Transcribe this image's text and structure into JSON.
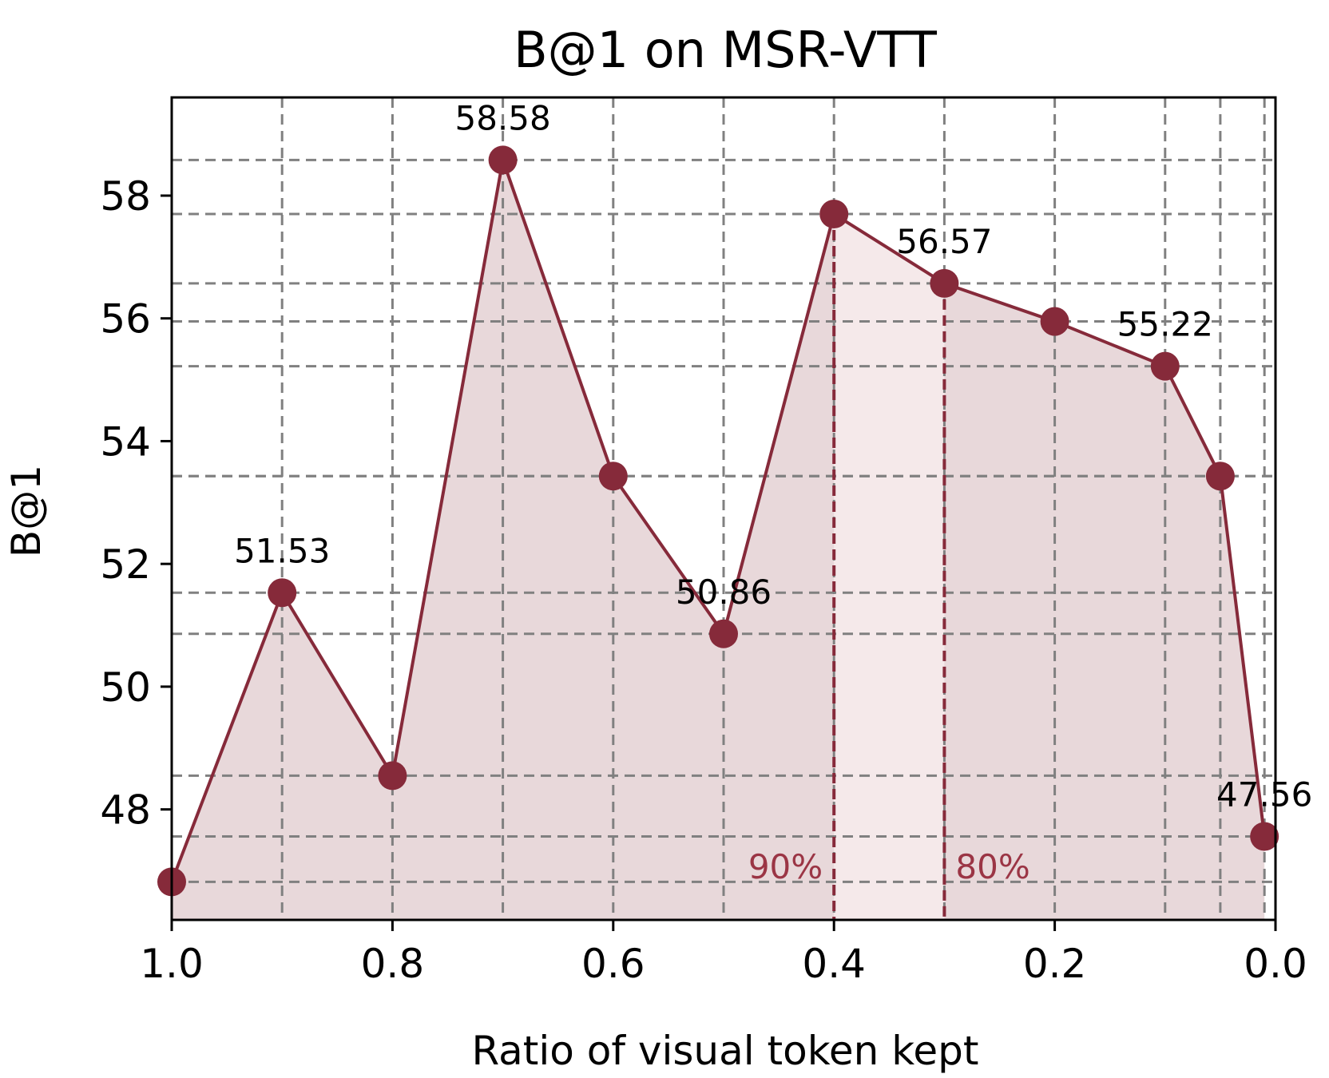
{
  "chart_data": {
    "type": "line",
    "title": "B@1 on MSR-VTT",
    "xlabel": "Ratio of visual token kept",
    "ylabel": "B@1",
    "xlim": [
      1.0,
      0.0
    ],
    "ylim": [
      46.2,
      59.6
    ],
    "x_reversed": true,
    "xticks": [
      1.0,
      0.8,
      0.6,
      0.4,
      0.2,
      0.0
    ],
    "xtick_labels": [
      "1.0",
      "0.8",
      "0.6",
      "0.4",
      "0.2",
      "0.0"
    ],
    "yticks": [
      48,
      50,
      52,
      54,
      56,
      58
    ],
    "ytick_labels": [
      "48",
      "50",
      "52",
      "54",
      "56",
      "58"
    ],
    "grid": true,
    "series": [
      {
        "x": [
          1.0,
          0.9,
          0.8,
          0.7,
          0.6,
          0.5,
          0.4,
          0.3,
          0.2,
          0.1,
          0.05,
          0.01
        ],
        "y": [
          46.82,
          51.53,
          48.55,
          58.58,
          53.43,
          50.86,
          57.7,
          56.57,
          55.95,
          55.22,
          53.43,
          47.56
        ],
        "color": "#862a3a"
      }
    ],
    "data_labels": [
      {
        "x": 0.9,
        "y": 51.53,
        "text": "51.53"
      },
      {
        "x": 0.7,
        "y": 58.58,
        "text": "58.58"
      },
      {
        "x": 0.5,
        "y": 50.86,
        "text": "50.86"
      },
      {
        "x": 0.3,
        "y": 56.57,
        "text": "56.57"
      },
      {
        "x": 0.1,
        "y": 55.22,
        "text": "55.22"
      },
      {
        "x": 0.01,
        "y": 47.56,
        "text": "47.56"
      }
    ],
    "markers": [
      {
        "x": 0.4,
        "text": "90%"
      },
      {
        "x": 0.3,
        "text": "80%"
      }
    ],
    "colors": {
      "line": "#862a3a",
      "fill": "#e8d8da",
      "fill_light": "#f5e9ea",
      "grid": "#808080",
      "marker_text": "#9b3545"
    }
  }
}
